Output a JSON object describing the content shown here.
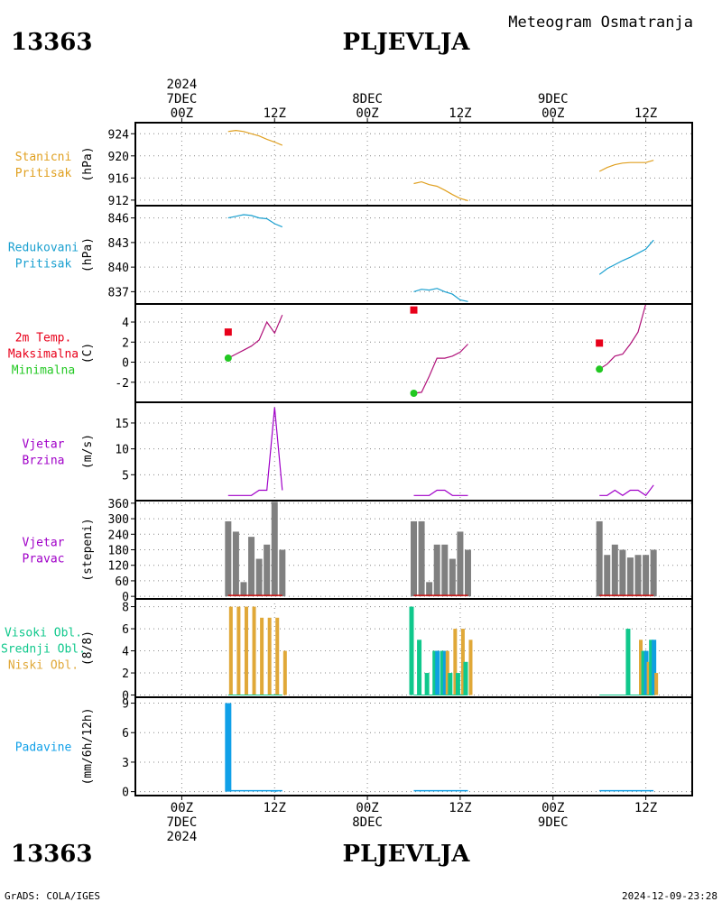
{
  "header": {
    "station_id": "13363",
    "station_name": "PLJEVLJA",
    "product": "Meteogram Osmatranja",
    "year": "2024"
  },
  "footer": {
    "station_id": "13363",
    "station_name": "PLJEVLJA",
    "credit": "GrADS: COLA/IGES",
    "timestamp": "2024-12-09-23:28"
  },
  "time_axis": {
    "range_hours": [
      -6,
      66
    ],
    "top_labels": [
      {
        "h": 0,
        "lines": [
          "2024",
          "7DEC",
          "00Z"
        ]
      },
      {
        "h": 12,
        "lines": [
          "12Z"
        ]
      },
      {
        "h": 24,
        "lines": [
          "8DEC",
          "00Z"
        ]
      },
      {
        "h": 36,
        "lines": [
          "12Z"
        ]
      },
      {
        "h": 48,
        "lines": [
          "9DEC",
          "00Z"
        ]
      },
      {
        "h": 60,
        "lines": [
          "12Z"
        ]
      }
    ],
    "bottom_labels": [
      {
        "h": 0,
        "lines": [
          "00Z",
          "7DEC",
          "2024"
        ]
      },
      {
        "h": 12,
        "lines": [
          "12Z"
        ]
      },
      {
        "h": 24,
        "lines": [
          "00Z",
          "8DEC"
        ]
      },
      {
        "h": 36,
        "lines": [
          "12Z"
        ]
      },
      {
        "h": 48,
        "lines": [
          "00Z",
          "9DEC"
        ]
      },
      {
        "h": 60,
        "lines": [
          "12Z"
        ]
      }
    ]
  },
  "colors": {
    "pressure": "#e0a020",
    "reduced": "#1aa0d0",
    "temp_line": "#b0127a",
    "tmax": "#e8001a",
    "tmin": "#22c822",
    "wind": "#a000c8",
    "dir_bar": "#808080",
    "dir_base": "#d01010",
    "cloud_high": "#10c88c",
    "cloud_mid": "#10a0e0",
    "cloud_low": "#e0a838",
    "precip": "#10a0e8"
  },
  "chart_data": [
    {
      "type": "line",
      "labels": [
        "Stanicni",
        "Pritisak"
      ],
      "ylabel": "(hPa)",
      "ylim": [
        911,
        926
      ],
      "yticks": [
        912,
        916,
        920,
        924
      ],
      "series": [
        {
          "x": [
            6,
            7,
            8,
            9,
            10,
            11,
            12,
            13
          ],
          "y": [
            924.4,
            924.6,
            924.4,
            924.0,
            923.6,
            923.0,
            922.5,
            921.9
          ]
        },
        {
          "x": [
            30,
            31,
            32,
            33,
            34,
            35,
            36,
            37
          ],
          "y": [
            915.0,
            915.3,
            914.8,
            914.5,
            913.8,
            913.0,
            912.3,
            911.9
          ]
        },
        {
          "x": [
            54,
            55,
            56,
            57,
            58,
            59,
            60,
            61
          ],
          "y": [
            917.2,
            917.9,
            918.4,
            918.7,
            918.8,
            918.8,
            918.8,
            919.2
          ]
        }
      ]
    },
    {
      "type": "line",
      "labels": [
        "Redukovani",
        "Pritisak"
      ],
      "ylabel": "(hPa)",
      "ylim": [
        835.5,
        847.5
      ],
      "yticks": [
        837,
        840,
        843,
        846
      ],
      "series": [
        {
          "x": [
            6,
            7,
            8,
            9,
            10,
            11,
            12,
            13
          ],
          "y": [
            846.0,
            846.2,
            846.4,
            846.3,
            846.0,
            845.9,
            845.3,
            844.9
          ]
        },
        {
          "x": [
            30,
            31,
            32,
            33,
            34,
            35,
            36,
            37
          ],
          "y": [
            837.0,
            837.3,
            837.2,
            837.4,
            837.0,
            836.7,
            836.0,
            835.8
          ]
        },
        {
          "x": [
            54,
            55,
            56,
            57,
            58,
            59,
            60,
            61
          ],
          "y": [
            839.1,
            839.8,
            840.3,
            840.8,
            841.2,
            841.7,
            842.2,
            843.3
          ]
        }
      ]
    },
    {
      "type": "line",
      "labels": [
        "2m Temp.",
        "Maksimalna",
        "Minimalna"
      ],
      "ylabel": "(C)",
      "ylim": [
        -4,
        5.8
      ],
      "yticks": [
        -2,
        0,
        2,
        4
      ],
      "series": [
        {
          "x": [
            6,
            7,
            8,
            9,
            10,
            11,
            12,
            13
          ],
          "y": [
            0.4,
            0.8,
            1.2,
            1.6,
            2.2,
            4.0,
            2.9,
            4.7
          ]
        },
        {
          "x": [
            30,
            31,
            32,
            33,
            34,
            35,
            36,
            37
          ],
          "y": [
            -3.1,
            -3.0,
            -1.4,
            0.4,
            0.4,
            0.6,
            1.0,
            1.8
          ]
        },
        {
          "x": [
            54,
            55,
            56,
            57,
            58,
            59,
            60,
            61
          ],
          "y": [
            -0.7,
            -0.2,
            0.6,
            0.8,
            1.8,
            3.0,
            5.8,
            6.5
          ]
        }
      ],
      "tmax": [
        {
          "x": 6,
          "y": 3.0
        },
        {
          "x": 30,
          "y": 5.2
        },
        {
          "x": 54,
          "y": 1.9
        }
      ],
      "tmin": [
        {
          "x": 6,
          "y": 0.4
        },
        {
          "x": 30,
          "y": -3.1
        },
        {
          "x": 54,
          "y": -0.7
        }
      ]
    },
    {
      "type": "line",
      "labels": [
        "Vjetar",
        "Brzina"
      ],
      "ylabel": "(m/s)",
      "ylim": [
        0,
        19
      ],
      "yticks": [
        5,
        10,
        15
      ],
      "series": [
        {
          "x": [
            6,
            7,
            8,
            9,
            10,
            11,
            12,
            13
          ],
          "y": [
            1,
            1,
            1,
            1,
            2,
            2,
            18,
            2
          ]
        },
        {
          "x": [
            30,
            31,
            32,
            33,
            34,
            35,
            36,
            37
          ],
          "y": [
            1,
            1,
            1,
            2,
            2,
            1,
            1,
            1
          ]
        },
        {
          "x": [
            54,
            55,
            56,
            57,
            58,
            59,
            60,
            61
          ],
          "y": [
            1,
            1,
            2,
            1,
            2,
            2,
            1,
            3
          ]
        }
      ]
    },
    {
      "type": "bar",
      "labels": [
        "Vjetar",
        "Pravac"
      ],
      "ylabel": "(stepeni)",
      "ylim": [
        -10,
        370
      ],
      "yticks": [
        0,
        60,
        120,
        180,
        240,
        300,
        360
      ],
      "x": [
        6,
        7,
        8,
        9,
        10,
        11,
        12,
        13,
        30,
        31,
        32,
        33,
        34,
        35,
        36,
        37,
        54,
        55,
        56,
        57,
        58,
        59,
        60,
        61
      ],
      "values": [
        290,
        250,
        55,
        230,
        145,
        200,
        365,
        180,
        290,
        290,
        55,
        200,
        200,
        145,
        250,
        180,
        290,
        160,
        200,
        180,
        150,
        160,
        160,
        180
      ]
    },
    {
      "type": "bar",
      "labels": [
        "Visoki Obl.",
        "Srednji Obl.",
        "Niski Obl."
      ],
      "ylabel": "(8/8)",
      "ylim": [
        -0.2,
        8.7
      ],
      "yticks": [
        0,
        2,
        4,
        6,
        8
      ],
      "x": [
        6,
        7,
        8,
        9,
        10,
        11,
        12,
        13,
        30,
        31,
        32,
        33,
        34,
        35,
        36,
        37,
        54,
        55,
        56,
        57,
        58,
        59,
        60,
        61
      ],
      "series": [
        {
          "name": "high",
          "values": [
            0,
            0,
            0,
            0,
            0,
            0,
            0,
            0,
            8,
            5,
            2,
            4,
            4,
            2,
            2,
            3,
            0,
            0,
            0,
            0,
            6,
            0,
            4,
            5
          ]
        },
        {
          "name": "mid",
          "values": [
            0,
            0,
            0,
            0,
            0,
            0,
            0,
            0,
            0,
            0,
            0,
            4,
            4,
            0,
            0,
            0,
            0,
            0,
            0,
            0,
            0,
            0,
            4,
            5
          ]
        },
        {
          "name": "low",
          "values": [
            8,
            8,
            8,
            8,
            7,
            7,
            7,
            4,
            0,
            0,
            0,
            0,
            4,
            6,
            6,
            5,
            0,
            0,
            0,
            0,
            0,
            5,
            3,
            2
          ]
        }
      ]
    },
    {
      "type": "bar",
      "labels": [
        "Padavine"
      ],
      "ylabel": "(mm/6h/12h)",
      "ylim": [
        -0.4,
        9.6
      ],
      "yticks": [
        0,
        3,
        6,
        9
      ],
      "x": [
        6,
        7,
        8,
        9,
        10,
        11,
        12,
        13,
        30,
        31,
        32,
        33,
        34,
        35,
        36,
        37,
        54,
        55,
        56,
        57,
        58,
        59,
        60,
        61
      ],
      "values": [
        9,
        0,
        0,
        0,
        0,
        0,
        0.1,
        0,
        0,
        0,
        0,
        0,
        0,
        0,
        0,
        0,
        0,
        0,
        0,
        0,
        0,
        0,
        0,
        0
      ]
    }
  ]
}
